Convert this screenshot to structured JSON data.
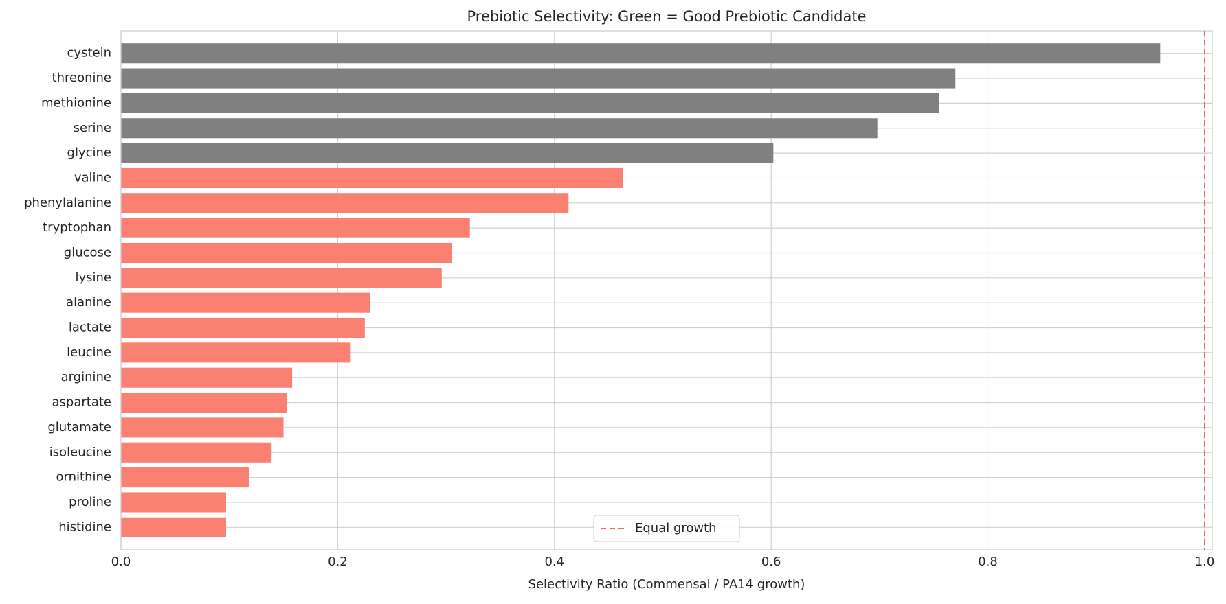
{
  "chart_data": {
    "type": "barh",
    "title": "Prebiotic Selectivity: Green = Good Prebiotic Candidate",
    "x_label": "Selectivity Ratio (Commensal / PA14 growth)",
    "categories": [
      "cystein",
      "threonine",
      "methionine",
      "serine",
      "glycine",
      "valine",
      "phenylalanine",
      "tryptophan",
      "glucose",
      "lysine",
      "alanine",
      "lactate",
      "leucine",
      "arginine",
      "aspartate",
      "glutamate",
      "isoleucine",
      "ornithine",
      "proline",
      "histidine"
    ],
    "values": [
      0.959,
      0.77,
      0.755,
      0.698,
      0.602,
      0.463,
      0.413,
      0.322,
      0.305,
      0.296,
      0.23,
      0.225,
      0.212,
      0.158,
      0.153,
      0.15,
      0.139,
      0.118,
      0.097,
      0.097
    ],
    "colors": [
      "#808080",
      "#808080",
      "#808080",
      "#808080",
      "#808080",
      "#fa8072",
      "#fa8072",
      "#fa8072",
      "#fa8072",
      "#fa8072",
      "#fa8072",
      "#fa8072",
      "#fa8072",
      "#fa8072",
      "#fa8072",
      "#fa8072",
      "#fa8072",
      "#fa8072",
      "#fa8072",
      "#fa8072"
    ],
    "xlim": [
      0,
      1.007
    ],
    "xticks": [
      {
        "value": 0,
        "label": "0.0"
      },
      0.2,
      0.4,
      0.6,
      0.8,
      {
        "value": 1,
        "label": "1.0"
      }
    ],
    "grid": true,
    "reference_line": {
      "value": 1,
      "label": "Equal growth",
      "color": "#f06464"
    },
    "legend_position": "lower center"
  }
}
